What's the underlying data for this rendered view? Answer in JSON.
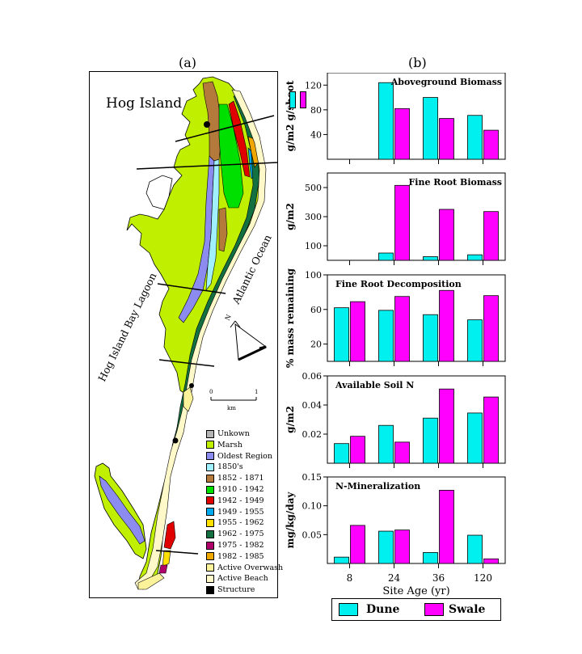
{
  "panel_labels": {
    "a": "(a)",
    "b": "(b)"
  },
  "map": {
    "title": "Hog Island",
    "lagoon_label": "Hog Island Bay Lagoon",
    "ocean_label": "Atlantic Ocean",
    "north_label": "N",
    "scale": {
      "zero": "0",
      "one": "1",
      "unit": "km"
    },
    "legend": [
      {
        "label": "Unkown",
        "color": "#b4b4b4"
      },
      {
        "label": "Marsh",
        "color": "#c0f000"
      },
      {
        "label": "Oldest Region",
        "color": "#8c8cf0"
      },
      {
        "label": "1850's",
        "color": "#a0f0ff"
      },
      {
        "label": "1852  - 1871",
        "color": "#b47a3c"
      },
      {
        "label": "1910  - 1942",
        "color": "#00e000"
      },
      {
        "label": "1942  - 1949",
        "color": "#e00000"
      },
      {
        "label": "1949  - 1955",
        "color": "#00aaee"
      },
      {
        "label": "1955  - 1962",
        "color": "#ffe000"
      },
      {
        "label": "1962  - 1975",
        "color": "#137040"
      },
      {
        "label": "1975  - 1982",
        "color": "#b0006a"
      },
      {
        "label": "1982  - 1985",
        "color": "#f0a800"
      },
      {
        "label": "Active Overwash",
        "color": "#fcf29a"
      },
      {
        "label": "Active Beach",
        "color": "#fff8c8"
      },
      {
        "label": "Structure",
        "color": "#000000"
      }
    ]
  },
  "colors": {
    "dune": "#00f0f0",
    "swale": "#ff00ff"
  },
  "chart_data": [
    {
      "type": "bar",
      "title": "Aboveground  Biomass",
      "ylabel": "g/m2 g/shoot",
      "categories": [
        "8",
        "24",
        "36",
        "120"
      ],
      "ylim": [
        0,
        140
      ],
      "yticks": [
        40,
        80,
        120
      ],
      "series": [
        {
          "name": "Dune",
          "values": [
            null,
            124,
            100,
            71
          ]
        },
        {
          "name": "Swale",
          "values": [
            null,
            82,
            66,
            47
          ]
        }
      ]
    },
    {
      "type": "bar",
      "title": "Fine  Root  Biomass",
      "ylabel": "g/m2",
      "categories": [
        "8",
        "24",
        "36",
        "120"
      ],
      "ylim": [
        0,
        600
      ],
      "yticks": [
        100,
        300,
        500
      ],
      "series": [
        {
          "name": "Dune",
          "values": [
            null,
            50,
            25,
            38
          ]
        },
        {
          "name": "Swale",
          "values": [
            null,
            515,
            350,
            335
          ]
        }
      ]
    },
    {
      "type": "bar",
      "title": "Fine  Root  Decomposition",
      "ylabel": "%  mass  remaining",
      "categories": [
        "8",
        "24",
        "36",
        "120"
      ],
      "ylim": [
        0,
        100
      ],
      "yticks": [
        20,
        60,
        100
      ],
      "series": [
        {
          "name": "Dune",
          "values": [
            62,
            59,
            54,
            48
          ]
        },
        {
          "name": "Swale",
          "values": [
            69,
            75,
            82,
            76
          ]
        }
      ]
    },
    {
      "type": "bar",
      "title": "Available  Soil  N",
      "ylabel": "g/m2",
      "categories": [
        "8",
        "24",
        "36",
        "120"
      ],
      "ylim": [
        0,
        0.06
      ],
      "yticks": [
        0.02,
        0.04,
        0.06
      ],
      "series": [
        {
          "name": "Dune",
          "values": [
            0.0135,
            0.026,
            0.031,
            0.0345
          ]
        },
        {
          "name": "Swale",
          "values": [
            0.0185,
            0.0145,
            0.051,
            0.0455
          ]
        }
      ]
    },
    {
      "type": "bar",
      "title": "N-Mineralization",
      "ylabel": "mg/kg/day",
      "categories": [
        "8",
        "24",
        "36",
        "120"
      ],
      "ylim": [
        0,
        0.15
      ],
      "yticks": [
        0.05,
        0.1,
        0.15
      ],
      "xlabel": "Site  Age  (yr)",
      "series": [
        {
          "name": "Dune",
          "values": [
            0.011,
            0.056,
            0.019,
            0.049
          ]
        },
        {
          "name": "Swale",
          "values": [
            0.066,
            0.058,
            0.127,
            0.008
          ]
        }
      ]
    }
  ],
  "series_legend": {
    "dune": "Dune",
    "swale": "Swale"
  }
}
